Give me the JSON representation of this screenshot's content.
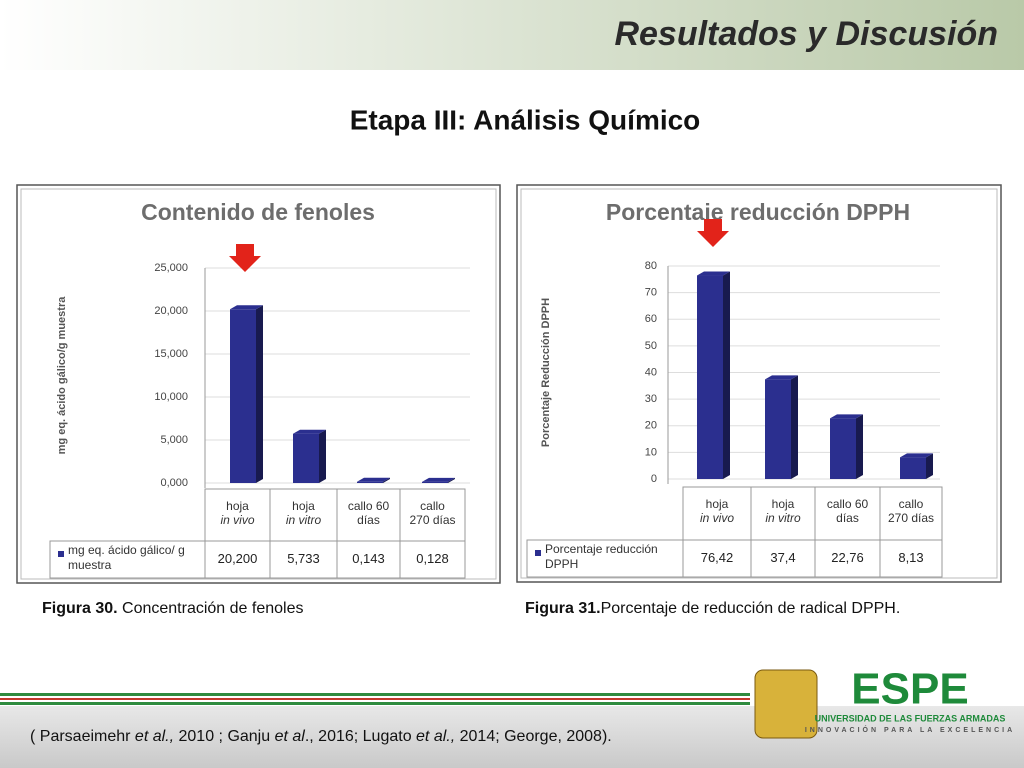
{
  "header": {
    "title": "Resultados y Discusión",
    "subtitle": "Etapa III: Análisis Químico"
  },
  "chart_data": [
    {
      "type": "bar",
      "title": "Contenido de fenoles",
      "y_label": "mg eq. ácido gálico/g muestra",
      "categories": [
        [
          "hoja",
          "in vivo"
        ],
        [
          "hoja",
          "in vitro"
        ],
        [
          "callo 60",
          "días"
        ],
        [
          "callo",
          "270 días"
        ]
      ],
      "series": [
        {
          "name": "mg eq. ácido gálico/ g muestra",
          "color": "#2b2f8f",
          "values": [
            20.2,
            5.733,
            0.143,
            0.128
          ],
          "value_labels": [
            "20,200",
            "5,733",
            "0,143",
            "0,128"
          ]
        }
      ],
      "ylim": [
        0,
        25
      ],
      "yticks": [
        {
          "value": 0,
          "label": "0,000"
        },
        {
          "value": 5,
          "label": "5,000"
        },
        {
          "value": 10,
          "label": "10,000"
        },
        {
          "value": 15,
          "label": "15,000"
        },
        {
          "value": 20,
          "label": "20,000"
        },
        {
          "value": 25,
          "label": "25,000"
        }
      ],
      "caption": [
        "Figura 30.",
        " Concentración de fenoles"
      ]
    },
    {
      "type": "bar",
      "title": "Porcentaje reducción DPPH",
      "y_label": "Porcentaje Reducción DPPH",
      "categories": [
        [
          "hoja",
          "in vivo"
        ],
        [
          "hoja",
          "in vitro"
        ],
        [
          "callo 60",
          "días"
        ],
        [
          "callo",
          "270 días"
        ]
      ],
      "series": [
        {
          "name": "Porcentaje reducción DPPH",
          "color": "#2b2f8f",
          "values": [
            76.42,
            37.4,
            22.76,
            8.13
          ],
          "value_labels": [
            "76,42",
            "37,4",
            "22,76",
            "8,13"
          ]
        }
      ],
      "ylim": [
        0,
        80
      ],
      "yticks": [
        0,
        10,
        20,
        30,
        40,
        50,
        60,
        70,
        80
      ],
      "caption": [
        "Figura 31.",
        "Porcentaje de reducción de radical DPPH."
      ]
    }
  ],
  "reference": [
    "( Parsaeimehr ",
    "et al.,",
    " 2010 ; Ganju ",
    "et al",
    "., 2016; Lugato ",
    "et al.,",
    " 2014; George, 2008)."
  ],
  "logo": {
    "name": "ESPE",
    "line1": "UNIVERSIDAD DE LAS FUERZAS ARMADAS",
    "line2": "INNOVACIÓN PARA LA EXCELENCIA"
  }
}
